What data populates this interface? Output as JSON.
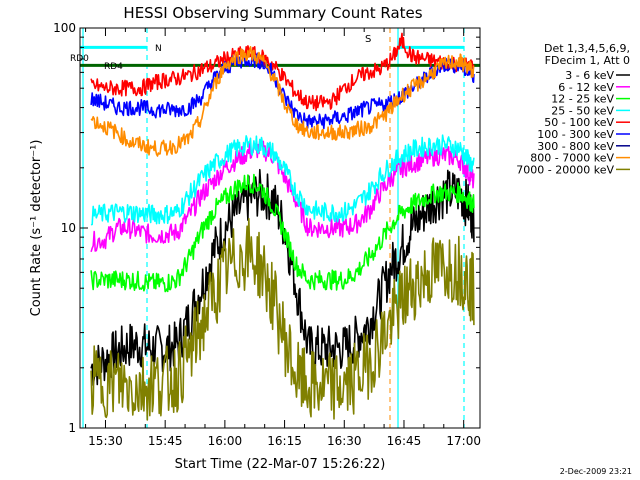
{
  "chart_data": {
    "type": "line",
    "title": "HESSI Observing Summary Count Rates",
    "xlabel": "Start Time (22-Mar-07 15:26:22)",
    "ylabel": "Count Rate (s⁻¹ detector⁻¹)",
    "yscale": "log",
    "ylim": [
      1,
      100
    ],
    "xlim_minutes": [
      -2.4,
      34.1
    ],
    "x_unit": "minutes after 16:00 UT",
    "x_tick_labels": [
      "15:30",
      "15:45",
      "16:00",
      "16:15",
      "16:30",
      "16:45",
      "17:00"
    ],
    "x_tick_minutes": [
      -30,
      -15,
      0,
      15,
      30,
      45,
      60
    ],
    "y_tick_labels": [
      "1",
      "10",
      "100"
    ],
    "y_tick_values": [
      1,
      10,
      100
    ],
    "grid": false,
    "legend_placement": "outside-right",
    "legend_header": [
      "Det 1,3,4,5,6,9,",
      "FDecim 1, Att 0"
    ],
    "x_sample_minutes": [
      -33.6,
      -30,
      -27,
      -24,
      -21,
      -18,
      -15,
      -12,
      -9,
      -6,
      -3,
      0,
      3,
      6,
      9,
      12,
      15,
      18,
      21,
      24,
      27,
      30,
      33,
      36,
      39,
      42,
      44.5,
      47,
      50,
      53,
      56,
      59,
      61,
      62.7
    ],
    "series": [
      {
        "name": "3 - 6 keV",
        "color": "#000000",
        "values": [
          2.0,
          2.2,
          2.4,
          2.6,
          2.6,
          2.5,
          2.5,
          2.6,
          3.5,
          5,
          7.5,
          10,
          12,
          14,
          15,
          14,
          10,
          5,
          2.5,
          2.5,
          2.5,
          2.5,
          2.8,
          3.3,
          4.5,
          6.5,
          8,
          10,
          12,
          14,
          15,
          15,
          13,
          11
        ]
      },
      {
        "name": "6 - 12 keV",
        "color": "#ff00ff",
        "values": [
          8.5,
          8.8,
          10,
          10,
          9.5,
          9.2,
          9.3,
          9.5,
          11.5,
          14.5,
          17,
          20,
          22,
          24,
          25,
          23,
          18,
          13.5,
          10,
          10,
          10,
          10,
          10.5,
          12,
          15,
          18,
          20,
          21,
          22,
          23,
          23,
          22,
          19,
          17
        ]
      },
      {
        "name": "12 - 25 keV",
        "color": "#00ff00",
        "values": [
          5.5,
          5.5,
          5.5,
          5.5,
          5.4,
          5.3,
          5.3,
          5.5,
          7,
          9.5,
          12,
          14,
          16,
          17,
          16,
          13,
          9.5,
          6.5,
          5.5,
          5.5,
          5.5,
          5.5,
          6,
          7,
          8.5,
          10.5,
          12,
          13,
          14,
          15,
          15,
          15,
          14,
          13
        ]
      },
      {
        "name": "25 - 50 keV",
        "color": "#00ffff",
        "values": [
          11.5,
          11.8,
          12,
          12,
          11.8,
          11.7,
          11.7,
          12,
          14.5,
          17.5,
          20.5,
          23,
          25,
          26,
          26,
          24,
          19.5,
          15,
          12.5,
          12,
          12,
          12,
          13,
          15,
          18,
          21,
          23,
          24.5,
          25.5,
          26,
          26,
          25,
          22,
          20
        ]
      },
      {
        "name": "50 - 100 keV",
        "color": "#ff0000",
        "values": [
          52,
          50,
          50,
          50,
          50,
          53,
          55,
          56,
          58,
          62,
          65,
          70,
          73,
          75,
          72,
          66,
          56,
          47,
          42,
          42,
          43,
          50,
          56,
          60,
          62,
          70,
          86,
          72,
          70,
          68,
          67,
          66,
          65,
          64
        ]
      },
      {
        "name": "100 - 300 keV",
        "color": "#0000ff",
        "values": [
          44,
          42,
          40,
          40,
          40,
          39,
          39,
          39,
          40,
          45,
          55,
          63,
          68,
          70,
          68,
          60,
          45,
          37,
          34,
          34,
          35,
          36,
          38,
          40,
          41,
          43,
          46,
          50,
          55,
          62,
          66,
          65,
          60,
          58
        ]
      },
      {
        "name": "300 - 800 keV",
        "color": "#00008b",
        "values": [
          null,
          null,
          null,
          null,
          null,
          null,
          null,
          null,
          null,
          null,
          null,
          null,
          null,
          null,
          null,
          null,
          null,
          null,
          null,
          null,
          null,
          null,
          null,
          null,
          null,
          null,
          null,
          null,
          null,
          null,
          null,
          null,
          null,
          null
        ]
      },
      {
        "name": "800 - 7000 keV",
        "color": "#ff8c00",
        "values": [
          35,
          32,
          30,
          27,
          26,
          25,
          25,
          26,
          28,
          35,
          50,
          65,
          72,
          75,
          70,
          58,
          42,
          33,
          30,
          30,
          30,
          30,
          31,
          32,
          35,
          40,
          46,
          50,
          55,
          62,
          67,
          68,
          64,
          60
        ]
      },
      {
        "name": "7000 - 20000 keV",
        "color": "#808000",
        "values": [
          1.7,
          1.7,
          1.7,
          1.6,
          1.6,
          1.7,
          1.7,
          1.8,
          2.3,
          3.2,
          4.5,
          6,
          7,
          7.5,
          6.5,
          4.5,
          2.8,
          1.8,
          1.6,
          1.6,
          1.6,
          1.6,
          1.8,
          2.1,
          2.7,
          3.5,
          4.3,
          5.1,
          5.7,
          6.2,
          6.5,
          6.2,
          5.5,
          4.8
        ]
      }
    ],
    "annotations": [
      {
        "text": "N",
        "color": "#00ffff"
      },
      {
        "text": "RD0",
        "color": "#006400"
      },
      {
        "text": "RD4",
        "color": "#006400"
      },
      {
        "text": "S",
        "color": "#ff8c00"
      }
    ],
    "decimation_line_value": 65,
    "night_bar_value": 80
  },
  "footer": {
    "date_stamp": "2-Dec-2009 23:21"
  },
  "colors": {
    "axis": "#000000",
    "night_marker": "#00ffff",
    "decimation_marker": "#006400",
    "saa_marker": "#ff8c00"
  }
}
